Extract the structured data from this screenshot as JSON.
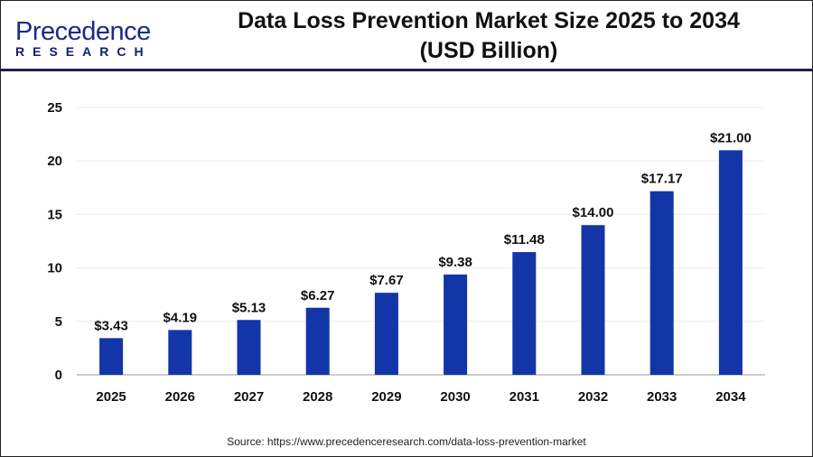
{
  "header": {
    "logo_text_top": "Precedence",
    "logo_text_bottom": "RESEARCH",
    "title_line1": "Data Loss Prevention Market Size 2025 to 2034",
    "title_line2": "(USD Billion)"
  },
  "source": "Source: https://www.precedenceresearch.com/data-loss-prevention-market",
  "chart_data": {
    "type": "bar",
    "title": "Data Loss Prevention Market Size 2025 to 2034 (USD Billion)",
    "categories": [
      "2025",
      "2026",
      "2027",
      "2028",
      "2029",
      "2030",
      "2031",
      "2032",
      "2033",
      "2034"
    ],
    "values": [
      3.43,
      4.19,
      5.13,
      6.27,
      7.67,
      9.38,
      11.48,
      14.0,
      17.17,
      21.0
    ],
    "data_labels": [
      "$3.43",
      "$4.19",
      "$5.13",
      "$6.27",
      "$7.67",
      "$9.38",
      "$11.48",
      "$14.00",
      "$17.17",
      "$21.00"
    ],
    "ylim": [
      0,
      25
    ],
    "yticks": [
      0,
      5,
      10,
      15,
      20,
      25
    ],
    "grid": true,
    "bar_color": "#1235a8"
  }
}
